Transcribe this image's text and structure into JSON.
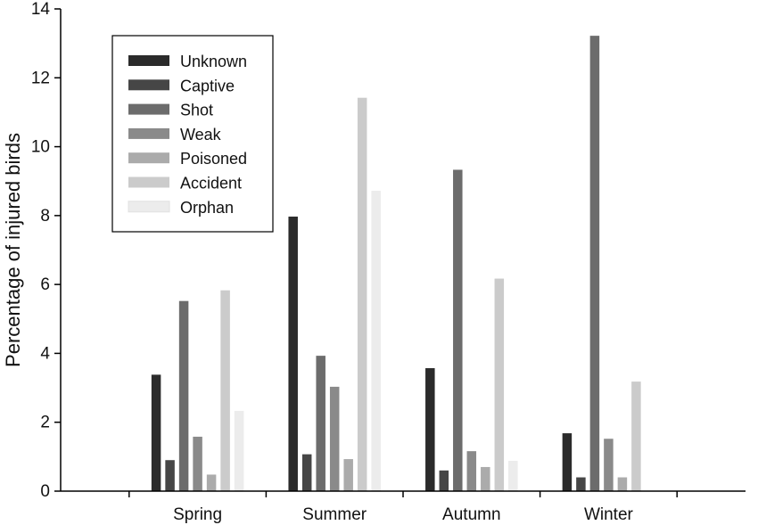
{
  "chart_data": {
    "type": "bar",
    "categories": [
      "Spring",
      "Summer",
      "Autumn",
      "Winter"
    ],
    "series": [
      {
        "name": "Unknown",
        "color": "#2b2b2b",
        "values": [
          3.38,
          7.97,
          3.57,
          1.68
        ]
      },
      {
        "name": "Captive",
        "color": "#464646",
        "values": [
          0.9,
          1.07,
          0.6,
          0.4
        ]
      },
      {
        "name": "Shot",
        "color": "#6c6c6c",
        "values": [
          5.52,
          3.93,
          9.33,
          13.22
        ]
      },
      {
        "name": "Weak",
        "color": "#8a8a8a",
        "values": [
          1.58,
          3.03,
          1.16,
          1.52
        ]
      },
      {
        "name": "Poisoned",
        "color": "#ababab",
        "values": [
          0.48,
          0.93,
          0.7,
          0.4
        ]
      },
      {
        "name": "Accident",
        "color": "#cbcbcb",
        "values": [
          5.83,
          11.42,
          6.17,
          3.18
        ]
      },
      {
        "name": "Orphan",
        "color": "#ececec",
        "values": [
          2.33,
          8.72,
          0.88,
          0
        ]
      }
    ],
    "ylabel": "Percentage of injured birds",
    "xlabel": "",
    "ylim": [
      0,
      14
    ],
    "yticks": [
      0,
      2,
      4,
      6,
      8,
      10,
      12,
      14
    ],
    "legend": "top-left",
    "grid": false
  }
}
